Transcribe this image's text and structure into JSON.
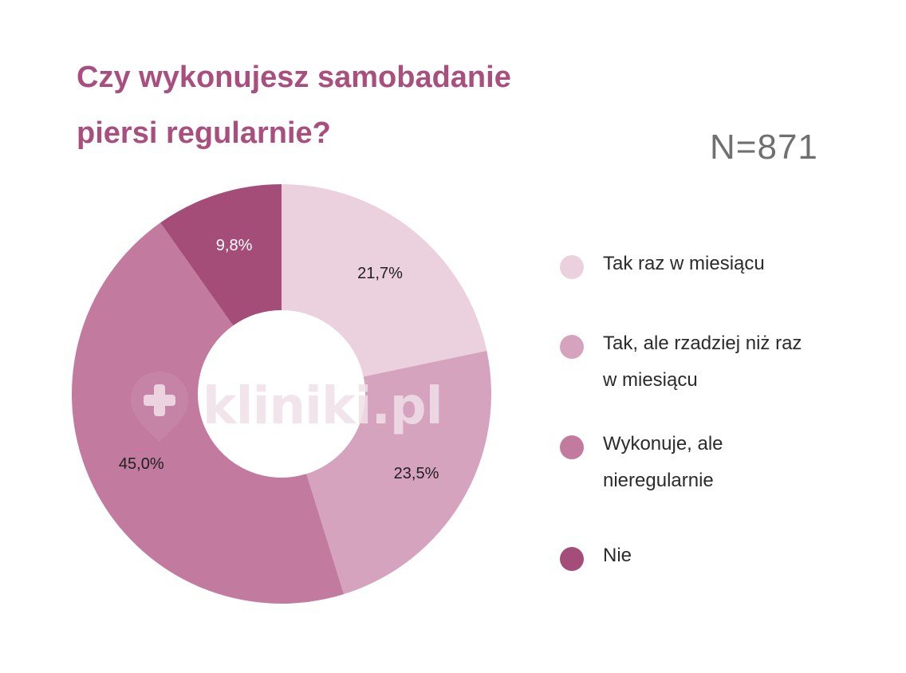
{
  "header": {
    "title_line1": "Czy wykonujesz samobadanie",
    "title_line2": "piersi regularnie?",
    "sample_size": "N=871"
  },
  "watermark": {
    "text": "kliniki.pl",
    "icon": "cross-pin-icon"
  },
  "colors": {
    "title": "#a94f7e",
    "slice_1": "#ead1dd",
    "slice_2": "#d6a3bf",
    "slice_3": "#c27a9f",
    "slice_4": "#a54d79"
  },
  "chart_data": {
    "type": "pie",
    "donut": true,
    "title": "Czy wykonujesz samobadanie piersi regularnie?",
    "categories": [
      "Tak raz w miesiącu",
      "Tak, ale rzadziej niż raz w miesiącu",
      "Wykonuje, ale nieregularnie",
      "Nie"
    ],
    "values": [
      21.7,
      23.5,
      45.0,
      9.8
    ],
    "labels": [
      "21,7%",
      "23,5%",
      "45,0%",
      "9,8%"
    ],
    "legend_position": "right"
  }
}
